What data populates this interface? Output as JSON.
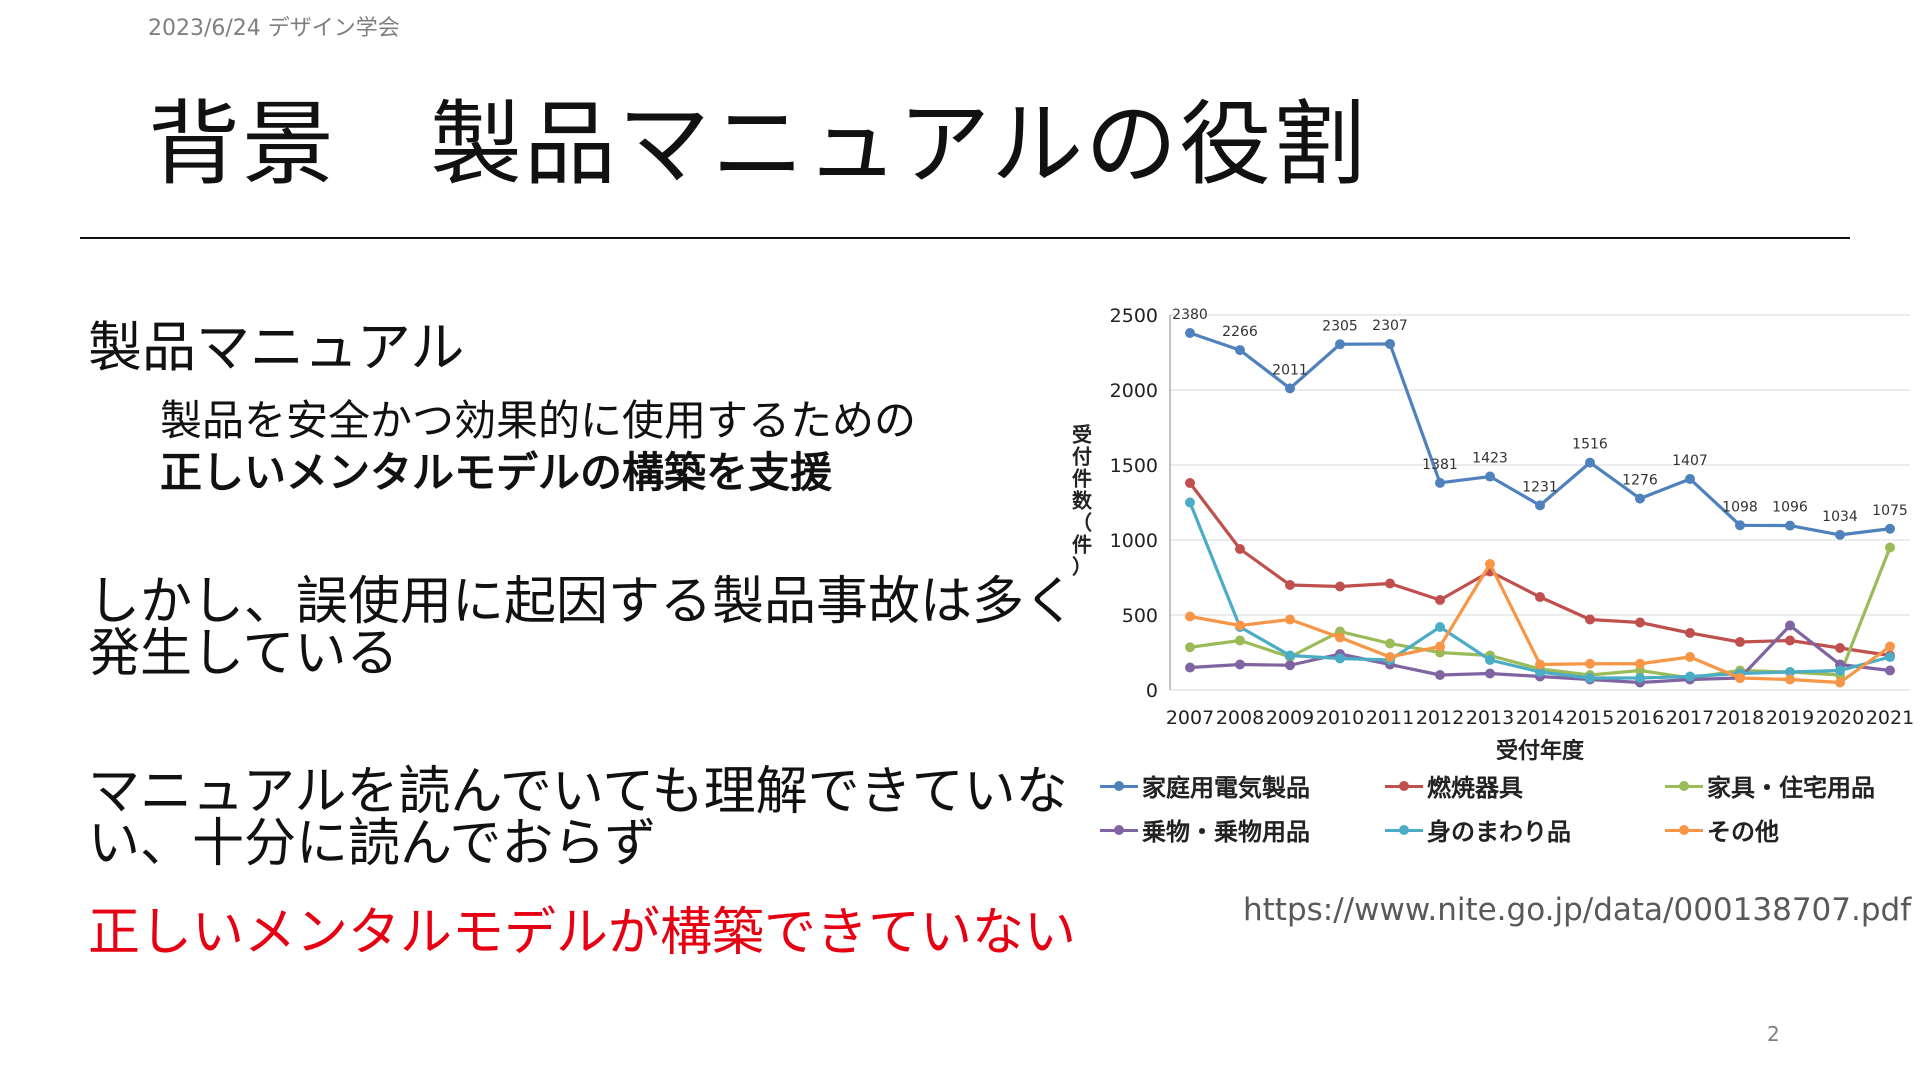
{
  "header": {
    "date": "2023/6/24 デザイン学会"
  },
  "title": "背景　製品マニュアルの役割",
  "left": {
    "heading1": "製品マニュアル",
    "sub_line1": "製品を安全かつ効果的に使用するための",
    "sub_line2": "正しいメンタルモデルの構築を支援",
    "para2_line1": "しかし、誤使用に起因する製品事故は多く",
    "para2_line2": "発生している",
    "para3_line1": "マニュアルを読んでいても理解できていな",
    "para3_line2": "い、十分に読んでおらず",
    "red_line": "正しいメンタルモデルが構築できていない"
  },
  "source_url": "https://www.nite.go.jp/data/000138707.pdf",
  "page_number": "2",
  "chart_data": {
    "type": "line",
    "xlabel": "受付年度",
    "ylabel": "受付件数（件）",
    "ylim": [
      0,
      2500
    ],
    "yticks": [
      0,
      500,
      1000,
      1500,
      2000,
      2500
    ],
    "grid": true,
    "legend_position": "bottom",
    "categories": [
      "2007",
      "2008",
      "2009",
      "2010",
      "2011",
      "2012",
      "2013",
      "2014",
      "2015",
      "2016",
      "2017",
      "2018",
      "2019",
      "2020",
      "2021"
    ],
    "series": [
      {
        "name": "家庭用電気製品",
        "color": "#4f81bd",
        "labeled": true,
        "values": [
          2380,
          2266,
          2011,
          2305,
          2307,
          1381,
          1423,
          1231,
          1516,
          1276,
          1407,
          1098,
          1096,
          1034,
          1075
        ]
      },
      {
        "name": "燃焼器具",
        "color": "#c0504d",
        "labeled": false,
        "values": [
          1380,
          940,
          700,
          690,
          710,
          600,
          790,
          620,
          470,
          450,
          380,
          320,
          330,
          280,
          230
        ]
      },
      {
        "name": "家具・住宅用品",
        "color": "#9bbb59",
        "labeled": false,
        "values": [
          285,
          330,
          220,
          390,
          310,
          250,
          230,
          140,
          100,
          130,
          80,
          130,
          120,
          100,
          950
        ]
      },
      {
        "name": "乗物・乗物用品",
        "color": "#8064a2",
        "labeled": false,
        "values": [
          150,
          170,
          165,
          240,
          170,
          100,
          110,
          90,
          70,
          50,
          70,
          80,
          430,
          170,
          130
        ]
      },
      {
        "name": "身のまわり品",
        "color": "#4bacc6",
        "labeled": false,
        "values": [
          1250,
          420,
          230,
          210,
          200,
          420,
          200,
          120,
          80,
          80,
          90,
          110,
          120,
          130,
          220
        ]
      },
      {
        "name": "その他",
        "color": "#f79646",
        "labeled": false,
        "values": [
          490,
          430,
          470,
          350,
          220,
          290,
          840,
          170,
          175,
          175,
          220,
          80,
          70,
          50,
          290
        ]
      }
    ]
  }
}
